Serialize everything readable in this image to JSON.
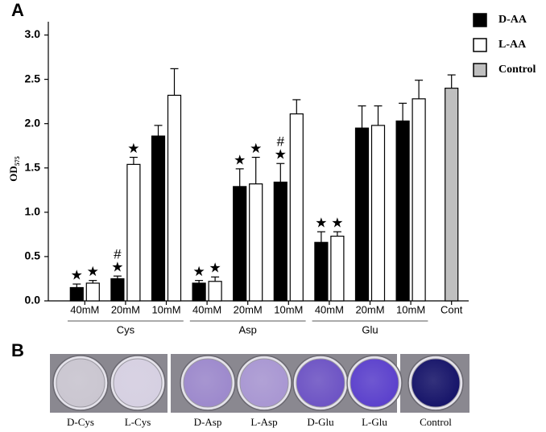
{
  "chart_data": {
    "type": "bar",
    "panel_label": "A",
    "y_label": "OD",
    "y_label_sub": "575",
    "categories": [
      "40mM",
      "20mM",
      "10mM",
      "40mM",
      "20mM",
      "10mM",
      "40mM",
      "20mM",
      "10mM",
      "Cont"
    ],
    "category_groups": [
      "Cys",
      "Cys",
      "Cys",
      "Asp",
      "Asp",
      "Asp",
      "Glu",
      "Glu",
      "Glu",
      null
    ],
    "series": [
      {
        "name": "D-AA",
        "color": "#000000",
        "values": [
          0.15,
          0.25,
          1.86,
          0.2,
          1.29,
          1.34,
          0.66,
          1.95,
          2.03,
          null
        ],
        "errors": [
          0.04,
          0.03,
          0.12,
          0.03,
          0.2,
          0.21,
          0.12,
          0.25,
          0.2,
          null
        ],
        "annotations": [
          [
            "★"
          ],
          [
            "#",
            "★"
          ],
          null,
          [
            "★"
          ],
          [
            "★"
          ],
          [
            "#",
            "★"
          ],
          [
            "★"
          ],
          null,
          null,
          null
        ]
      },
      {
        "name": "L-AA",
        "color": "#ffffff",
        "values": [
          0.2,
          1.54,
          2.32,
          0.22,
          1.32,
          2.11,
          0.73,
          1.98,
          2.28,
          null
        ],
        "errors": [
          0.03,
          0.08,
          0.3,
          0.05,
          0.3,
          0.16,
          0.05,
          0.22,
          0.21,
          null
        ],
        "annotations": [
          [
            "★"
          ],
          [
            "★"
          ],
          null,
          [
            "★"
          ],
          [
            "★"
          ],
          null,
          [
            "★"
          ],
          null,
          null,
          null
        ]
      },
      {
        "name": "Control",
        "color": "#bfbfbf",
        "values": [
          null,
          null,
          null,
          null,
          null,
          null,
          null,
          null,
          null,
          2.4
        ],
        "errors": [
          null,
          null,
          null,
          null,
          null,
          null,
          null,
          null,
          null,
          0.15
        ],
        "annotations": [
          null,
          null,
          null,
          null,
          null,
          null,
          null,
          null,
          null,
          null
        ]
      }
    ],
    "ylim": [
      0,
      3.15
    ],
    "yticks": [
      {
        "value": 0,
        "label": "0.0"
      },
      0.5,
      {
        "value": 1,
        "label": "1.0"
      },
      1.5,
      {
        "value": 2,
        "label": "2.0"
      },
      2.5,
      {
        "value": 3,
        "label": "3.0"
      }
    ],
    "legend": "top-right"
  },
  "panel_b": {
    "label": "B",
    "wells": [
      "D-Cys",
      "L-Cys",
      "D-Asp",
      "L-Asp",
      "D-Glu",
      "L-Glu",
      "Control"
    ]
  }
}
